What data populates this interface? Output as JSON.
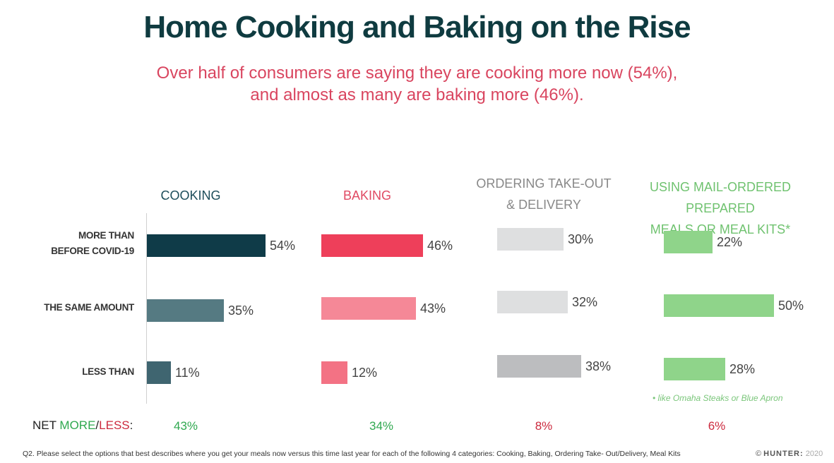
{
  "title": "Home Cooking and Baking on the Rise",
  "subtitle_line1": "Over half of consumers are saying they are cooking more now (54%),",
  "subtitle_line2": "and almost as many are baking more (46%).",
  "net_label": {
    "prefix": "NET ",
    "more": "MORE",
    "slash": "/",
    "less": "LESS",
    "suffix": ":"
  },
  "colors": {
    "more_word": "#2fa84f",
    "less_word": "#cc2a3e",
    "net_positive": "#2fa84f",
    "net_negative": "#cc2a3e"
  },
  "footnote": "•    like Omaha Steaks or Blue Apron",
  "question": "Q2. Please select the options that best describes where you get your meals now versus this time last year for each of the following 4 categories: Cooking, Baking, Ordering Take- Out/Delivery, Meal Kits",
  "brand": {
    "copyright": "©",
    "name": "HUNTER:",
    "year": "2020"
  },
  "chart_data": {
    "type": "bar",
    "orientation": "horizontal",
    "categories": [
      "MORE THAN BEFORE COVID-19",
      "THE SAME AMOUNT",
      "LESS THAN"
    ],
    "category_lines": [
      [
        "MORE THAN",
        "BEFORE COVID-19"
      ],
      [
        "THE SAME AMOUNT"
      ],
      [
        "LESS THAN"
      ]
    ],
    "value_suffix": "%",
    "xlim": [
      0,
      100
    ],
    "grid": false,
    "series": [
      {
        "name": "COOKING",
        "header_lines": [
          "COOKING"
        ],
        "header_color": "#1d4d5a",
        "values": [
          54,
          35,
          11
        ],
        "colors": [
          "#0f3b48",
          "#557a82",
          "#3f6570"
        ],
        "net": "43%",
        "net_positive": true
      },
      {
        "name": "BAKING",
        "header_lines": [
          "BAKING"
        ],
        "header_color": "#e04a63",
        "values": [
          46,
          43,
          12
        ],
        "colors": [
          "#ee3f5a",
          "#f58897",
          "#f37284"
        ],
        "net": "34%",
        "net_positive": true
      },
      {
        "name": "ORDERING TAKE-OUT & DELIVERY",
        "header_lines": [
          "ORDERING TAKE-OUT",
          "& DELIVERY"
        ],
        "header_color": "#888888",
        "values": [
          30,
          32,
          38
        ],
        "colors": [
          "#dedfe0",
          "#dedfe0",
          "#bcbdbf"
        ],
        "net": "8%",
        "net_positive": false
      },
      {
        "name": "USING MAIL-ORDERED PREPARED MEALS OR MEAL KITS*",
        "header_lines": [
          "USING MAIL-ORDERED PREPARED",
          "MEALS OR  MEAL KITS*"
        ],
        "header_color": "#6fc26f",
        "values": [
          22,
          50,
          28
        ],
        "colors": [
          "#8fd48a",
          "#8fd48a",
          "#8fd48a"
        ],
        "net": "6%",
        "net_positive": false
      }
    ]
  }
}
